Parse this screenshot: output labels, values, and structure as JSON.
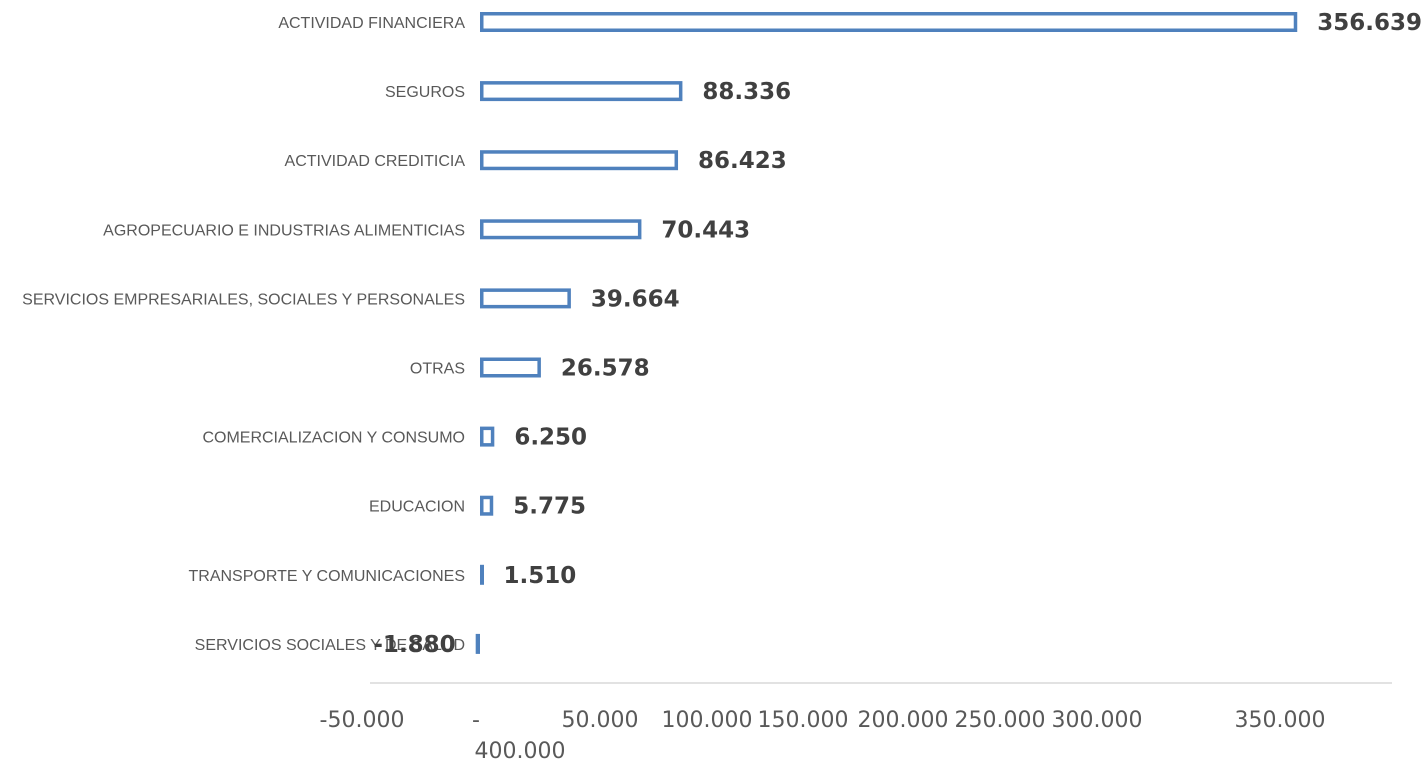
{
  "chart_data": {
    "type": "bar",
    "orientation": "horizontal",
    "categories": [
      "ACTIVIDAD FINANCIERA",
      "SEGUROS",
      "ACTIVIDAD CREDITICIA",
      "AGROPECUARIO E INDUSTRIAS ALIMENTICIAS",
      "SERVICIOS EMPRESARIALES, SOCIALES Y PERSONALES",
      "OTRAS",
      "COMERCIALIZACION Y CONSUMO",
      "EDUCACION",
      "TRANSPORTE Y COMUNICACIONES",
      "SERVICIOS SOCIALES Y DE SALUD"
    ],
    "values": [
      356639,
      88336,
      86423,
      70443,
      39664,
      26578,
      6250,
      5775,
      1510,
      -1880
    ],
    "value_labels": [
      "356.639",
      "88.336",
      "86.423",
      "70.443",
      "39.664",
      "26.578",
      "6.250",
      "5.775",
      "1.510",
      "-1.880"
    ],
    "xlim": [
      -50000,
      400000
    ],
    "x_ticks": [
      -50000,
      0,
      50000,
      100000,
      150000,
      200000,
      250000,
      300000,
      350000,
      400000
    ],
    "x_tick_labels": [
      "-50.000",
      "-",
      "50.000",
      "100.000",
      "150.000",
      "200.000",
      "250.000",
      "300.000",
      "350.000",
      "400.000"
    ],
    "title": "",
    "xlabel": "",
    "ylabel": "",
    "grid": false,
    "legend": "none",
    "colors": {
      "bar_stroke": "#4f81bd",
      "bar_fill": "#ffffff",
      "axis_line": "#d9d9d9",
      "category_text": "#595959",
      "value_text": "#404040"
    }
  }
}
